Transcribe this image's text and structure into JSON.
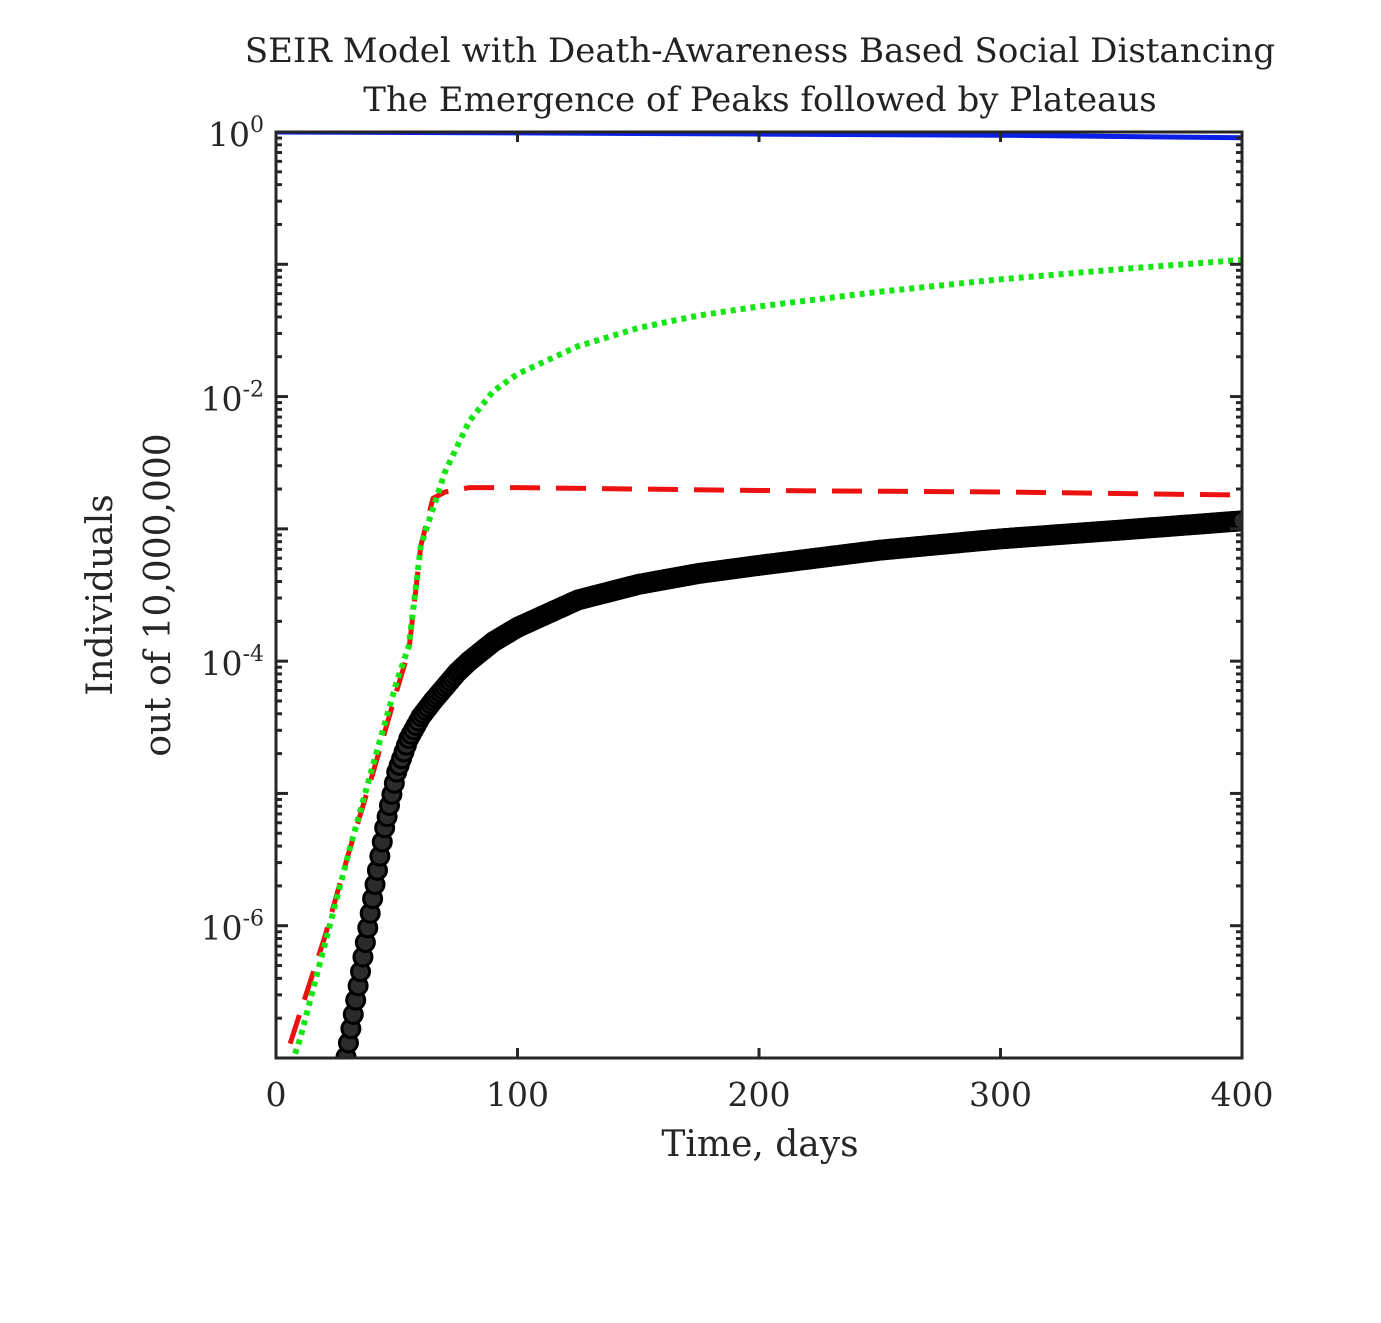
{
  "chart_data": {
    "type": "line",
    "title": "SEIR Model with Death-Awareness Based Social Distancing",
    "subtitle": "The Emergence of Peaks followed by Plateaus",
    "xlabel": "Time, days",
    "ylabel": [
      "Individuals",
      "out of 10,000,000"
    ],
    "xlim": [
      0,
      400
    ],
    "ylim": [
      1e-07,
      1
    ],
    "yscale": "log",
    "grid": false,
    "legend": "none",
    "x_ticks": [
      {
        "value": 0,
        "label": "0"
      },
      {
        "value": 100,
        "label": "100"
      },
      {
        "value": 200,
        "label": "200"
      },
      {
        "value": 300,
        "label": "300"
      },
      {
        "value": 400,
        "label": "400"
      }
    ],
    "y_ticks": [
      {
        "value": 1,
        "base": "10",
        "exp": "0"
      },
      {
        "value": 0.01,
        "base": "10",
        "exp": "-2"
      },
      {
        "value": 0.0001,
        "base": "10",
        "exp": "-4"
      },
      {
        "value": 1e-06,
        "base": "10",
        "exp": "-6"
      }
    ],
    "series": [
      {
        "style": "solid",
        "color": "#0a1ee6",
        "x": [
          0,
          100,
          200,
          300,
          400
        ],
        "y": [
          1.0,
          0.985,
          0.965,
          0.945,
          0.905
        ]
      },
      {
        "style": "dashed",
        "color": "#ee1111",
        "x": [
          0,
          10,
          20,
          30,
          40,
          50,
          55,
          60,
          65,
          70,
          80,
          100,
          150,
          200,
          300,
          400
        ],
        "y": [
          6e-08,
          2.2e-07,
          8e-07,
          3.5e-06,
          1.4e-05,
          6e-05,
          0.00012,
          0.00075,
          0.0017,
          0.0019,
          0.00205,
          0.00205,
          0.002,
          0.00195,
          0.0019,
          0.0018
        ]
      },
      {
        "style": "dotted",
        "color": "#16e616",
        "x": [
          0,
          10,
          20,
          30,
          40,
          50,
          55,
          60,
          70,
          80,
          90,
          100,
          125,
          150,
          175,
          200,
          250,
          300,
          350,
          400
        ],
        "y": [
          4e-08,
          1.4e-07,
          7e-07,
          3.5e-06,
          1.6e-05,
          7e-05,
          0.00013,
          0.00075,
          0.0027,
          0.0065,
          0.011,
          0.0148,
          0.024,
          0.033,
          0.041,
          0.048,
          0.062,
          0.077,
          0.092,
          0.108
        ]
      },
      {
        "style": "markers",
        "color": "#000000",
        "x": [
          28,
          30,
          35,
          40,
          45,
          50,
          55,
          60,
          65,
          70,
          75,
          80,
          90,
          100,
          125,
          150,
          175,
          200,
          250,
          300,
          350,
          400
        ],
        "y": [
          8e-08,
          1.3e-07,
          4.5e-07,
          1.6e-06,
          5.5e-06,
          1.45e-05,
          2.6e-05,
          3.8e-05,
          5e-05,
          6.4e-05,
          8.2e-05,
          0.0001,
          0.00014,
          0.00018,
          0.00029,
          0.00038,
          0.00046,
          0.00053,
          0.00069,
          0.00084,
          0.00098,
          0.00115
        ]
      }
    ]
  }
}
